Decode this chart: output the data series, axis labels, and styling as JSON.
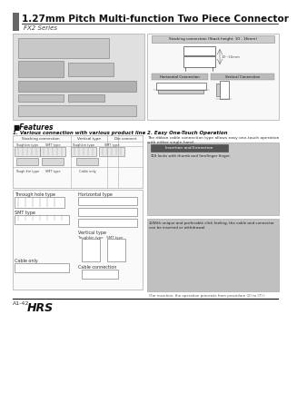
{
  "title": "1.27mm Pitch Multi-function Two Piece Connector",
  "series": "FX2 Series",
  "bg_color": "#ffffff",
  "title_bar_color": "#666666",
  "features_title": "■Features",
  "feature1_title": "1. Various connection with various product line",
  "feature2_title": "2. Easy One-Touch Operation",
  "feature2_body": "The ribbon cable connection type allows easy one-touch operation\nwith either single-hand.",
  "stacking_label": "Stacking connection (Stack height: 10 - 16mm)",
  "horizontal_label": "Horizontal Connection",
  "vertical_label": "Vertical Connection",
  "stacking_conn": "Stacking connection",
  "vertical_type": "Vertical type",
  "die_connect": "Die connect",
  "toughkin": "Toughkin type",
  "smt_type": "SMT type",
  "toughkin2": "Toughkin type",
  "smt_type2": "SMT type",
  "tough_kin_lbl": "Tough kin type",
  "smt_lbl": "SMT type",
  "cable_only_lbl": "Cable only",
  "through_hole": "Through hole type",
  "horizontal_type": "Horizontal type",
  "smt_type3": "SMT type",
  "vertical_type2": "Vertical type",
  "toughkin3": "Toughkin type",
  "smt_type4": "SMT type",
  "cable_only2": "Cable only",
  "cable_conn": "Cable connection",
  "ins_ext": "Insertion and Extraction",
  "click1": "①It locks with thumb and forefinger finger.",
  "click2": "②With unique and preferable click feeling, the cable and connector\ncan be inserted or withdrawal.",
  "note": "(For insertion, the operation proceeds from procedure (2) to (7).)",
  "bottom_text": "A1-42",
  "hrs_text": "HRS"
}
